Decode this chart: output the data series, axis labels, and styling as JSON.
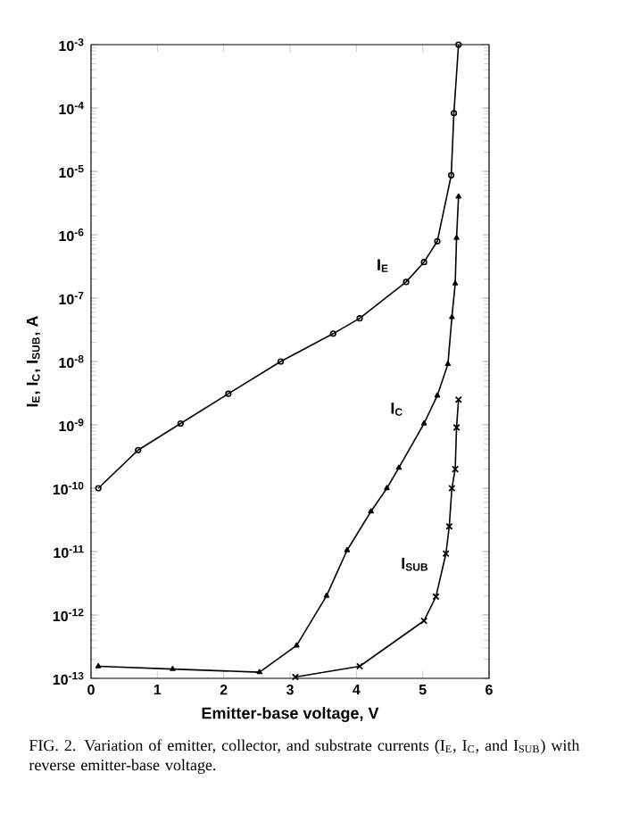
{
  "chart_data": {
    "type": "line",
    "xlabel": "Emitter-base voltage, V",
    "ylabel": "I$_{E}$, I$_{C}$, I$_{SUB}$, A",
    "xlim": [
      0,
      6
    ],
    "xticks": [
      0,
      1,
      2,
      3,
      4,
      5,
      6
    ],
    "ylim": [
      1e-13,
      0.001
    ],
    "log": "y",
    "yticks": [
      {
        "value": 1e-13,
        "label": "10$^{-13}$"
      },
      {
        "value": 1e-12,
        "label": "10$^{-12}$"
      },
      {
        "value": 1e-11,
        "label": "10$^{-11}$"
      },
      {
        "value": 1e-10,
        "label": "10$^{-10}$"
      },
      {
        "value": 1e-09,
        "label": "10$^{-9}$"
      },
      {
        "value": 1e-08,
        "label": "10$^{-8}$"
      },
      {
        "value": 1e-07,
        "label": "10$^{-7}$"
      },
      {
        "value": 1e-06,
        "label": "10$^{-6}$"
      },
      {
        "value": 1e-05,
        "label": "10$^{-5}$"
      },
      {
        "value": 0.0001,
        "label": "10$^{-4}$"
      },
      {
        "value": 0.001,
        "label": "10$^{-3}$"
      }
    ],
    "series": [
      {
        "name": "I$_{E}$",
        "color": "#000000",
        "marker": "circle",
        "x": [
          0.11,
          0.71,
          1.35,
          2.07,
          2.86,
          3.65,
          4.05,
          4.75,
          5.02,
          5.22,
          5.43,
          5.47,
          5.54
        ],
        "values": [
          1e-10,
          4e-10,
          1.05e-09,
          3.1e-09,
          1e-08,
          2.75e-08,
          4.8e-08,
          1.8e-07,
          3.7e-07,
          7.9e-07,
          8.7e-06,
          8.3e-05,
          0.001
        ]
      },
      {
        "name": "I$_{C}$",
        "color": "#000000",
        "marker": "triangle",
        "x": [
          0.11,
          1.23,
          2.54,
          3.1,
          3.55,
          3.86,
          4.22,
          4.46,
          4.64,
          5.02,
          5.22,
          5.38,
          5.44,
          5.49,
          5.51,
          5.54
        ],
        "values": [
          1.55e-13,
          1.4e-13,
          1.25e-13,
          3.3e-13,
          2e-12,
          1.05e-11,
          4.3e-11,
          1e-10,
          2.1e-10,
          1.05e-09,
          2.9e-09,
          9.1e-09,
          5e-08,
          1.7e-07,
          8.9e-07,
          4e-06
        ]
      },
      {
        "name": "I$_{SUB}$",
        "color": "#000000",
        "marker": "cross",
        "x": [
          3.08,
          4.05,
          5.02,
          5.2,
          5.35,
          5.4,
          5.44,
          5.49,
          5.51,
          5.54
        ],
        "values": [
          1.05e-13,
          1.55e-13,
          8.1e-13,
          1.95e-12,
          9.3e-12,
          2.5e-11,
          1e-10,
          2e-10,
          9.1e-10,
          2.5e-09
        ]
      }
    ],
    "annotations": [
      "FIG. 2. Variation of emitter, collector, and substrate currents (I$_{E}$, I$_{C}$, and I$_{SUB}$) with reverse emitter-base voltage."
    ]
  }
}
